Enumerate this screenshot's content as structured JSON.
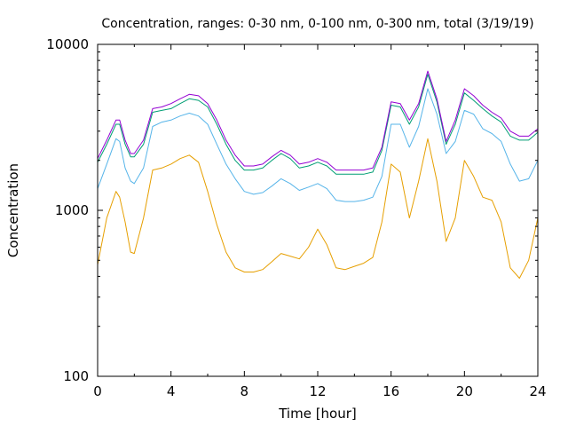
{
  "chart_data": {
    "type": "line",
    "title": "Concentration, ranges: 0-30 nm, 0-100 nm, 0-300 nm, total (3/19/19)",
    "xlabel": "Time [hour]",
    "ylabel": "Concentration",
    "xlim": [
      0,
      24
    ],
    "ylim": [
      100,
      10000
    ],
    "yscale": "log",
    "grid": false,
    "legend": "none",
    "x_ticks": [
      "0",
      "4",
      "8",
      "12",
      "16",
      "20",
      "24"
    ],
    "y_ticks": [
      "100",
      "1000",
      "10000"
    ],
    "x_tick_values": [
      0,
      4,
      8,
      12,
      16,
      20,
      24
    ],
    "y_tick_values": [
      100,
      1000,
      10000
    ],
    "x": [
      0,
      0.5,
      1.0,
      1.2,
      1.5,
      1.8,
      2.0,
      2.5,
      3.0,
      3.5,
      4.0,
      4.5,
      5.0,
      5.5,
      6.0,
      6.5,
      7.0,
      7.5,
      8.0,
      8.5,
      9.0,
      9.5,
      10.0,
      10.5,
      11.0,
      11.5,
      12.0,
      12.5,
      13.0,
      13.5,
      14.0,
      14.5,
      15.0,
      15.5,
      16.0,
      16.5,
      17.0,
      17.5,
      18.0,
      18.5,
      19.0,
      19.5,
      20.0,
      20.5,
      21.0,
      21.5,
      22.0,
      22.5,
      23.0,
      23.5,
      24.0
    ],
    "series": [
      {
        "color": "#e69f00",
        "values": [
          470,
          900,
          1300,
          1200,
          850,
          560,
          550,
          900,
          1750,
          1800,
          1900,
          2050,
          2150,
          1950,
          1300,
          820,
          560,
          450,
          425,
          425,
          440,
          490,
          550,
          530,
          510,
          600,
          770,
          620,
          450,
          440,
          460,
          480,
          520,
          850,
          1900,
          1700,
          900,
          1500,
          2700,
          1500,
          650,
          900,
          2000,
          1600,
          1200,
          1150,
          850,
          450,
          390,
          500,
          900
        ]
      },
      {
        "color": "#56b4e9",
        "values": [
          1350,
          1900,
          2700,
          2600,
          1800,
          1500,
          1450,
          1800,
          3200,
          3400,
          3500,
          3700,
          3850,
          3700,
          3300,
          2500,
          1900,
          1550,
          1300,
          1250,
          1280,
          1400,
          1550,
          1450,
          1320,
          1380,
          1450,
          1350,
          1150,
          1130,
          1130,
          1150,
          1200,
          1600,
          3300,
          3300,
          2400,
          3200,
          5400,
          3800,
          2200,
          2600,
          4000,
          3800,
          3100,
          2900,
          2600,
          1900,
          1500,
          1550,
          2000
        ]
      },
      {
        "color": "#009e73",
        "values": [
          1950,
          2500,
          3300,
          3300,
          2500,
          2100,
          2100,
          2500,
          3900,
          4000,
          4100,
          4400,
          4700,
          4600,
          4200,
          3300,
          2500,
          2000,
          1750,
          1750,
          1800,
          2000,
          2200,
          2050,
          1800,
          1850,
          1950,
          1850,
          1650,
          1650,
          1650,
          1650,
          1700,
          2300,
          4300,
          4200,
          3300,
          4200,
          6600,
          4500,
          2500,
          3300,
          5100,
          4600,
          4100,
          3700,
          3400,
          2800,
          2650,
          2650,
          2950
        ]
      },
      {
        "color": "#9400d3",
        "values": [
          2050,
          2650,
          3500,
          3500,
          2650,
          2200,
          2200,
          2650,
          4100,
          4200,
          4400,
          4700,
          5000,
          4900,
          4400,
          3500,
          2650,
          2150,
          1850,
          1850,
          1900,
          2100,
          2300,
          2150,
          1900,
          1950,
          2050,
          1950,
          1750,
          1750,
          1750,
          1750,
          1800,
          2400,
          4500,
          4400,
          3500,
          4400,
          6900,
          4700,
          2600,
          3500,
          5400,
          4900,
          4300,
          3900,
          3600,
          3000,
          2800,
          2800,
          3100
        ]
      }
    ]
  }
}
